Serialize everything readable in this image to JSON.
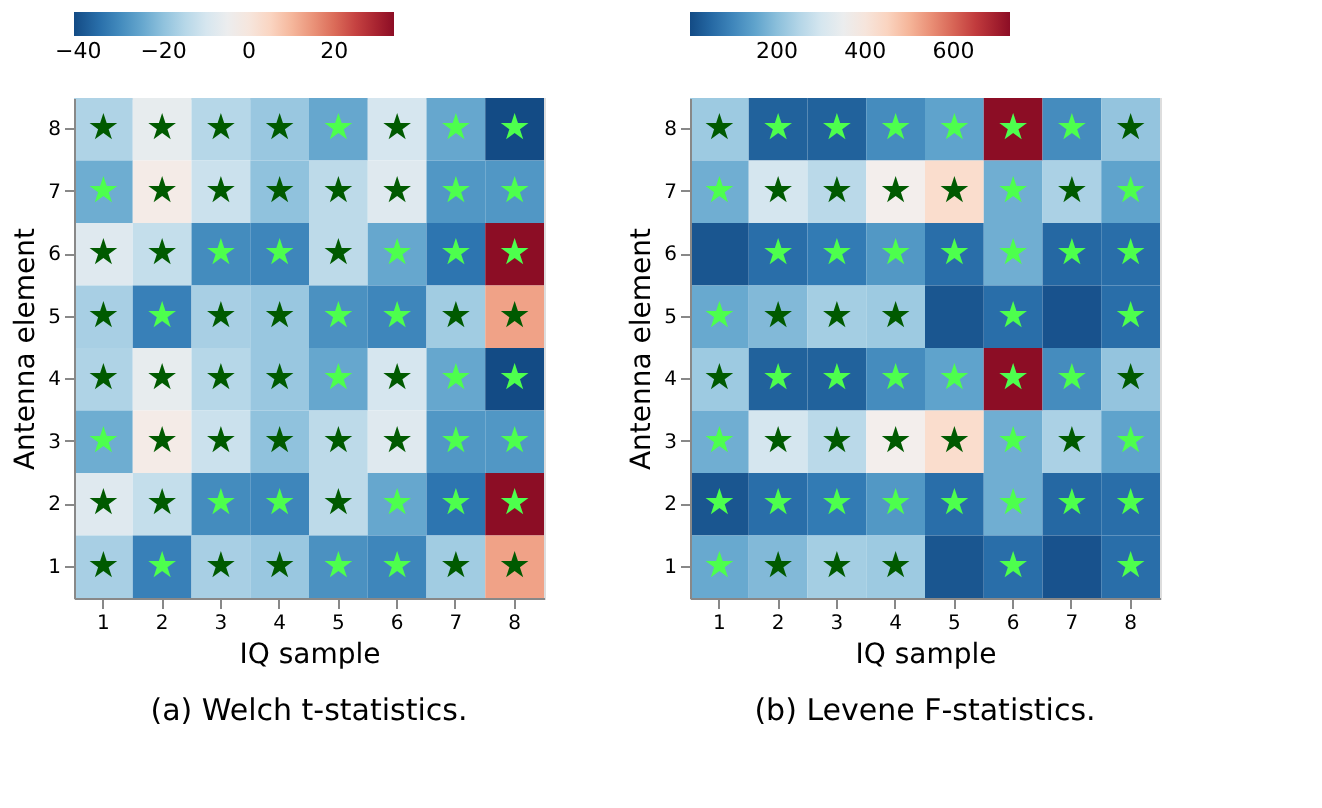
{
  "chart_data": [
    {
      "type": "heatmap",
      "title": "(a) Welch t-statistics.",
      "xlabel": "IQ sample",
      "ylabel": "Antenna element",
      "categories": [
        "1",
        "2",
        "3",
        "4",
        "5",
        "6",
        "7",
        "8"
      ],
      "y_categories": [
        "8",
        "7",
        "6",
        "5",
        "4",
        "3",
        "2",
        "1"
      ],
      "cells": [
        [
          -16,
          -6,
          -15,
          -19,
          -25,
          -10,
          -25,
          -41
        ],
        [
          -24,
          -2,
          -12,
          -20,
          -14,
          -8,
          -28,
          -28
        ],
        [
          -8,
          -13,
          -30,
          -31,
          -14,
          -25,
          -34,
          34
        ],
        [
          -17,
          -32,
          -17,
          -19,
          -29,
          -31,
          -18,
          13
        ],
        [
          -16,
          -6,
          -15,
          -19,
          -25,
          -10,
          -25,
          -41
        ],
        [
          -24,
          -2,
          -12,
          -20,
          -14,
          -8,
          -28,
          -28
        ],
        [
          -8,
          -13,
          -30,
          -31,
          -14,
          -25,
          -34,
          34
        ],
        [
          -17,
          -32,
          -17,
          -19,
          -29,
          -31,
          -18,
          13
        ]
      ],
      "cell_labels": [
        [
          "★",
          "★",
          "★",
          "★",
          "★",
          "★",
          "★",
          "★"
        ],
        [
          "★",
          "★",
          "★",
          "★",
          "★",
          "★",
          "★",
          "★"
        ],
        [
          "★",
          "★",
          "★",
          "★",
          "★",
          "★",
          "★",
          "★"
        ],
        [
          "★",
          "★",
          "★",
          "★",
          "★",
          "★",
          "★",
          "★"
        ],
        [
          "★",
          "★",
          "★",
          "★",
          "★",
          "★",
          "★",
          "★"
        ],
        [
          "★",
          "★",
          "★",
          "★",
          "★",
          "★",
          "★",
          "★"
        ],
        [
          "★",
          "★",
          "★",
          "★",
          "★",
          "★",
          "★",
          "★"
        ],
        [
          "★",
          "★",
          "★",
          "★",
          "★",
          "★",
          "★",
          "★"
        ]
      ],
      "clim": [
        -41,
        34
      ],
      "cticks": [
        -40,
        -20,
        0,
        20
      ],
      "grid": false
    },
    {
      "type": "heatmap",
      "title": "(b) Levene F-statistics.",
      "xlabel": "IQ sample",
      "ylabel": "Antenna element",
      "categories": [
        "1",
        "2",
        "3",
        "4",
        "5",
        "6",
        "7",
        "8"
      ],
      "y_categories": [
        "8",
        "7",
        "6",
        "5",
        "4",
        "3",
        "2",
        "1"
      ],
      "cells": [
        [
          220,
          40,
          40,
          110,
          150,
          728,
          110,
          210
        ],
        [
          170,
          300,
          260,
          370,
          430,
          170,
          240,
          150
        ],
        [
          20,
          60,
          80,
          130,
          60,
          170,
          50,
          60
        ],
        [
          160,
          190,
          230,
          220,
          20,
          60,
          15,
          60
        ],
        [
          220,
          40,
          40,
          110,
          150,
          728,
          110,
          210
        ],
        [
          170,
          300,
          260,
          370,
          430,
          170,
          240,
          150
        ],
        [
          20,
          60,
          80,
          130,
          60,
          170,
          50,
          60
        ],
        [
          160,
          190,
          230,
          220,
          20,
          60,
          15,
          60
        ]
      ],
      "cell_labels": [
        [
          "★",
          "★",
          "★",
          "★",
          "★",
          "★",
          "★",
          "★"
        ],
        [
          "★",
          "★",
          "★",
          "★",
          "★",
          "★",
          "★",
          "★"
        ],
        [
          null,
          "★",
          "★",
          "★",
          "★",
          "★",
          "★",
          "★"
        ],
        [
          "★",
          "★",
          "★",
          "★",
          null,
          "★",
          null,
          "★"
        ],
        [
          "★",
          "★",
          "★",
          "★",
          "★",
          "★",
          "★",
          "★"
        ],
        [
          "★",
          "★",
          "★",
          "★",
          "★",
          "★",
          "★",
          "★"
        ],
        [
          "★",
          "★",
          "★",
          "★",
          "★",
          "★",
          "★",
          "★"
        ],
        [
          "★",
          "★",
          "★",
          "★",
          null,
          "★",
          null,
          "★"
        ]
      ],
      "clim": [
        3,
        728
      ],
      "cticks": [
        200,
        400,
        600
      ],
      "grid": false
    }
  ]
}
